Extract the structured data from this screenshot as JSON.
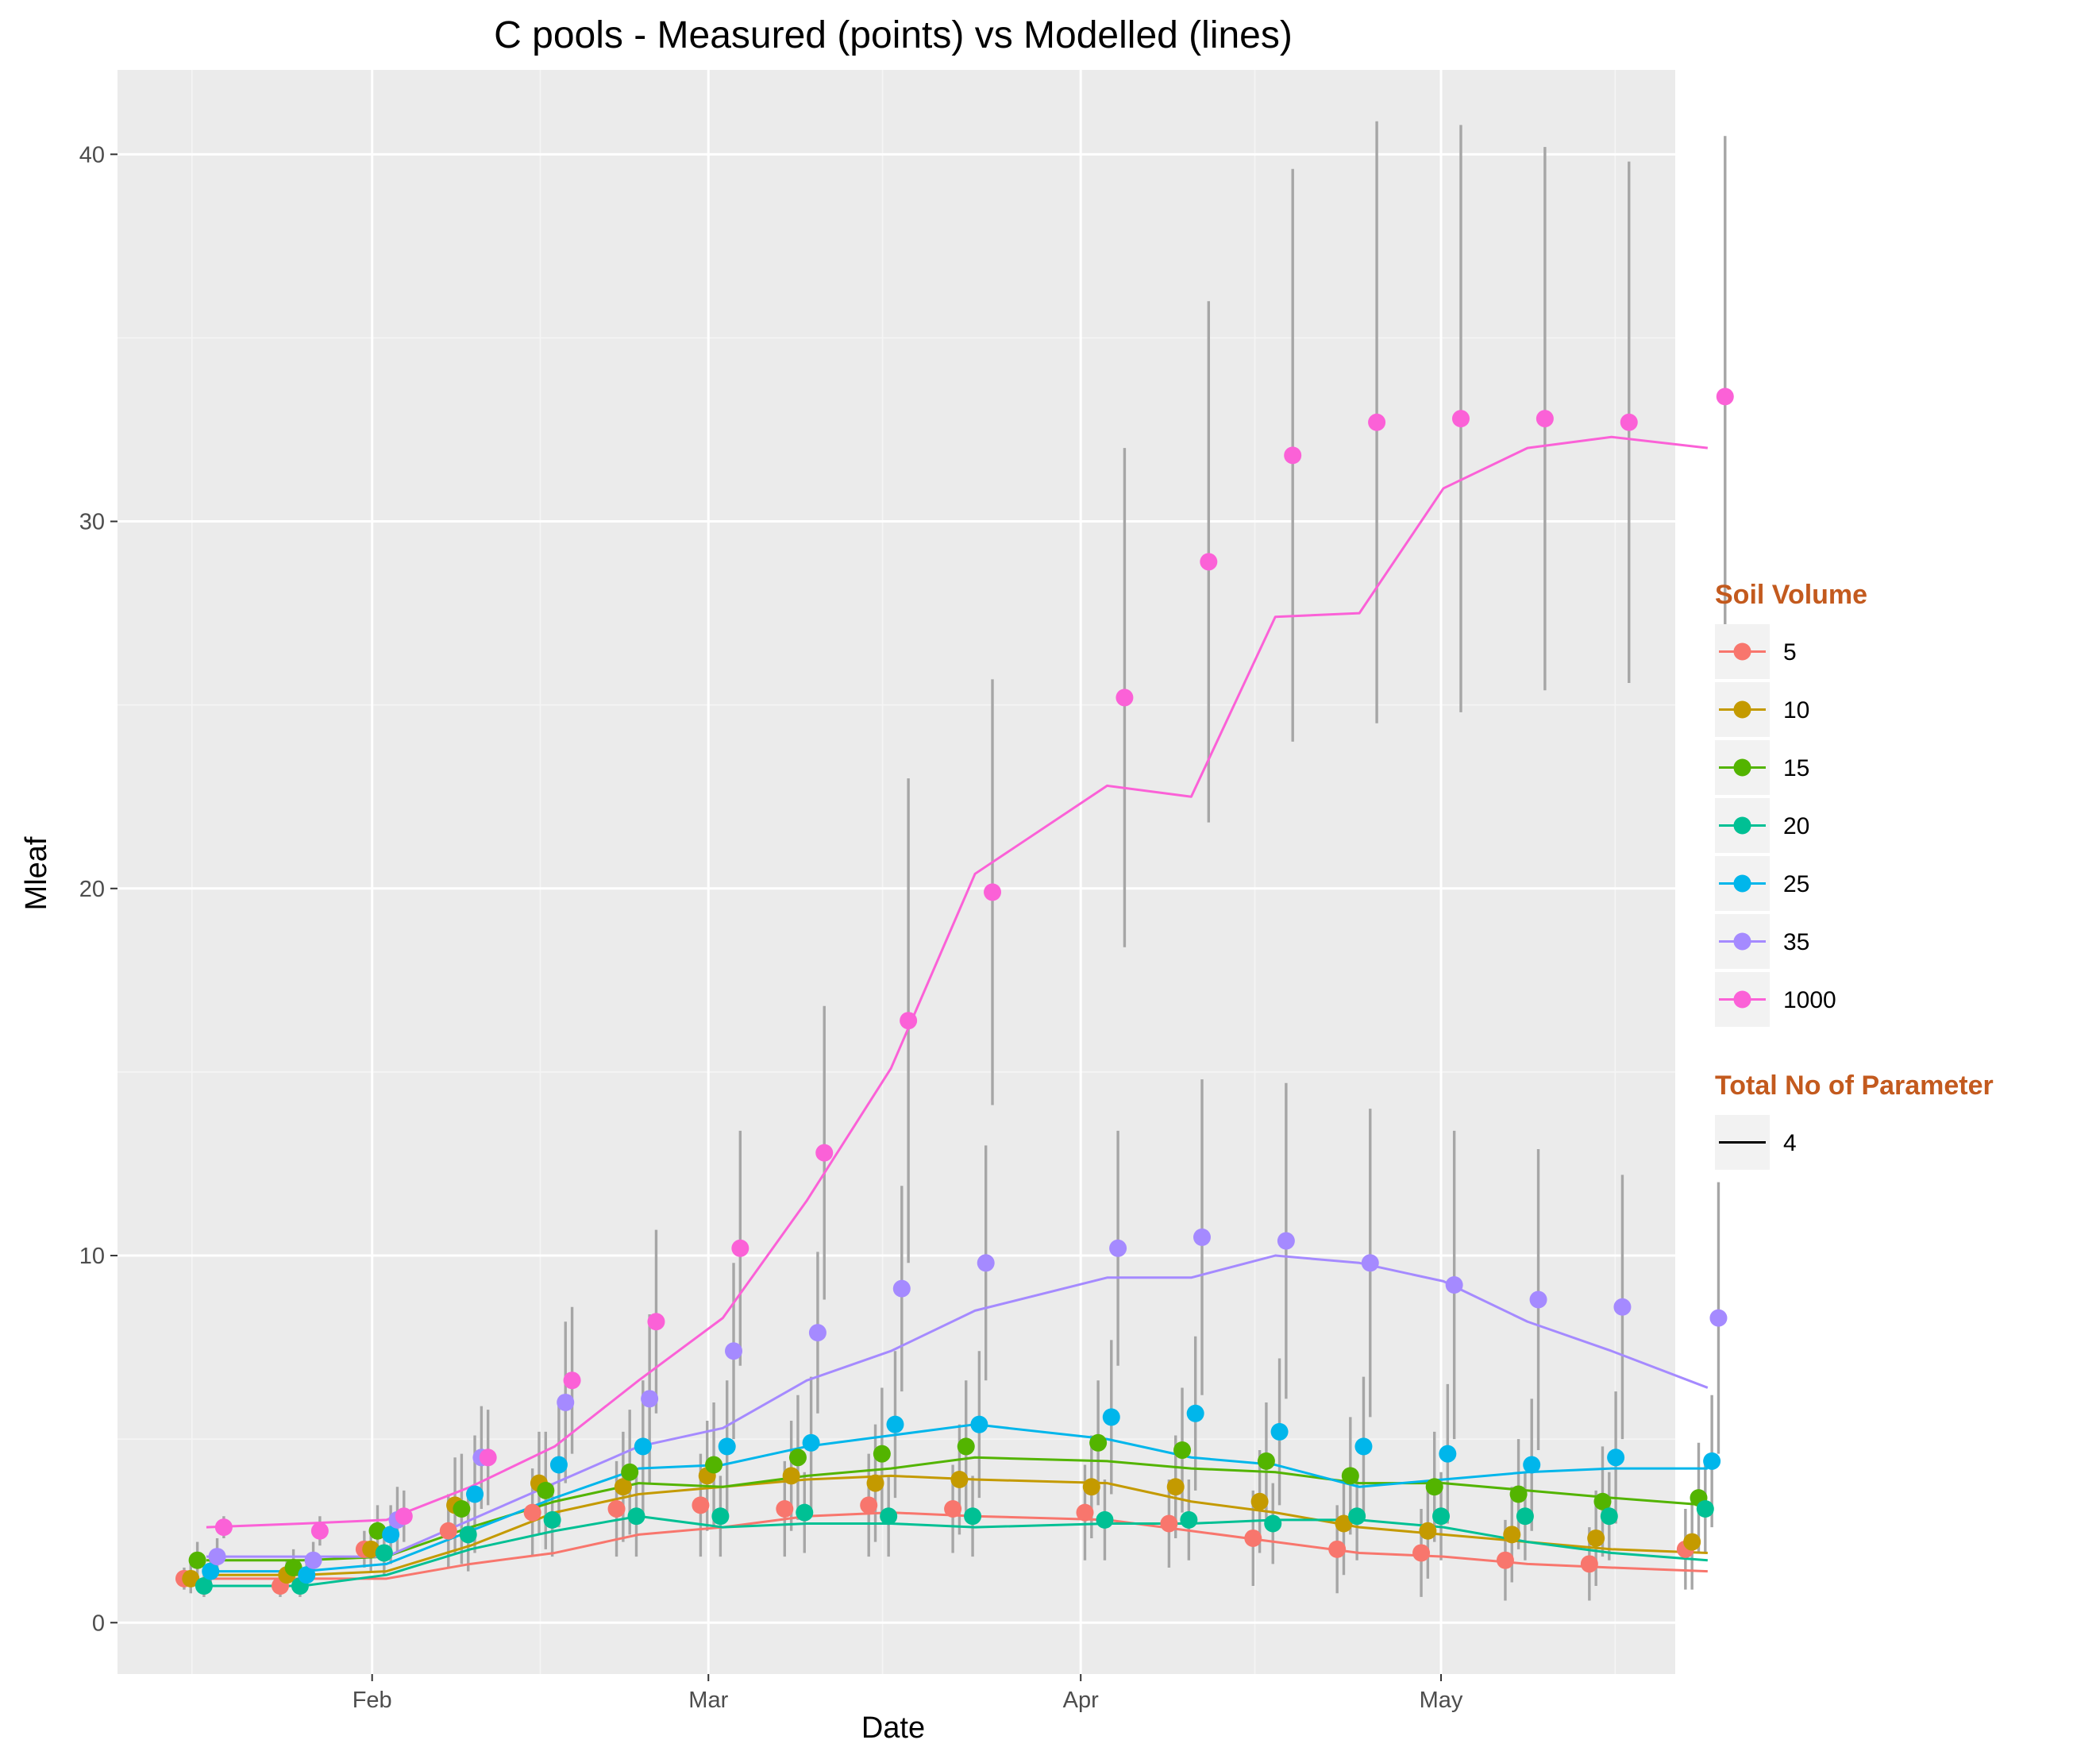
{
  "chart_data": {
    "type": "line",
    "title": "C pools - Measured (points) vs Modelled (lines)",
    "xlabel": "Date",
    "ylabel": "Mleaf",
    "x_ticks": [
      "Feb",
      "Mar",
      "Apr",
      "May"
    ],
    "y_ticks": [
      "0",
      "10",
      "20",
      "30",
      "40"
    ],
    "ylim": [
      -1.4,
      42.3
    ],
    "grid": "on",
    "legend_placement": "right",
    "legend_color_title": "Soil Volume",
    "legend_linetype_title": "Total No of Parameter",
    "legend_linetype_entries": [
      "4"
    ],
    "measure_dates": [
      "Jan 18",
      "Jan 26",
      "Feb 2",
      "Feb 9",
      "Feb 16",
      "Feb 23",
      "Mar 2",
      "Mar 9",
      "Mar 16",
      "Mar 23",
      "Apr 3",
      "Apr 10",
      "Apr 17",
      "Apr 24",
      "May 1",
      "May 8",
      "May 15",
      "May 23"
    ],
    "series": [
      {
        "name": "5",
        "color": "#F8766D",
        "measured": [
          1.2,
          1.0,
          2.0,
          2.5,
          3.0,
          3.1,
          3.2,
          3.1,
          3.2,
          3.1,
          3.0,
          2.7,
          2.3,
          2.0,
          1.9,
          1.7,
          1.6,
          2.0
        ],
        "error": [
          0.3,
          0.3,
          0.5,
          1.0,
          1.2,
          1.3,
          1.4,
          1.3,
          1.4,
          1.2,
          1.3,
          1.2,
          1.3,
          1.2,
          1.2,
          1.1,
          1.0,
          1.1
        ],
        "model": [
          1.2,
          1.2,
          1.2,
          1.6,
          1.9,
          2.4,
          2.6,
          2.9,
          3.0,
          2.9,
          2.8,
          2.5,
          2.2,
          1.9,
          1.8,
          1.6,
          1.5,
          1.4
        ]
      },
      {
        "name": "10",
        "color": "#C49A00",
        "measured": [
          1.2,
          1.3,
          2.0,
          3.2,
          3.8,
          3.7,
          4.0,
          4.0,
          3.8,
          3.9,
          3.7,
          3.7,
          3.3,
          2.7,
          2.5,
          2.4,
          2.3,
          2.2
        ],
        "error": [
          0.4,
          0.4,
          0.6,
          1.3,
          1.4,
          1.5,
          1.5,
          1.5,
          1.6,
          1.5,
          1.4,
          1.4,
          1.4,
          1.4,
          1.3,
          1.3,
          1.3,
          1.3
        ],
        "model": [
          1.3,
          1.3,
          1.4,
          2.1,
          3.0,
          3.5,
          3.7,
          3.9,
          4.0,
          3.9,
          3.8,
          3.3,
          3.0,
          2.6,
          2.4,
          2.2,
          2.0,
          1.9
        ]
      },
      {
        "name": "15",
        "color": "#53B400",
        "measured": [
          1.7,
          1.5,
          2.5,
          3.1,
          3.6,
          4.1,
          4.3,
          4.5,
          4.6,
          4.8,
          4.9,
          4.7,
          4.4,
          4.0,
          3.7,
          3.5,
          3.3,
          3.4
        ],
        "error": [
          0.5,
          0.5,
          0.7,
          1.5,
          1.6,
          1.7,
          1.7,
          1.7,
          1.8,
          1.8,
          1.7,
          1.7,
          1.6,
          1.6,
          1.5,
          1.5,
          1.5,
          1.5
        ],
        "model": [
          1.7,
          1.7,
          1.8,
          2.6,
          3.3,
          3.8,
          3.7,
          4.0,
          4.2,
          4.5,
          4.4,
          4.2,
          4.1,
          3.8,
          3.8,
          3.6,
          3.4,
          3.2
        ]
      },
      {
        "name": "20",
        "color": "#00C094",
        "measured": [
          1.0,
          1.0,
          1.9,
          2.4,
          2.8,
          2.9,
          2.9,
          3.0,
          2.9,
          2.9,
          2.8,
          2.8,
          2.7,
          2.9,
          2.9,
          2.9,
          2.9,
          3.1
        ],
        "error": [
          0.3,
          0.3,
          0.6,
          1.0,
          1.0,
          1.1,
          1.1,
          1.1,
          1.1,
          1.1,
          1.1,
          1.1,
          1.1,
          1.2,
          1.2,
          1.2,
          1.2,
          1.2
        ],
        "model": [
          1.0,
          1.0,
          1.3,
          2.0,
          2.5,
          2.9,
          2.6,
          2.7,
          2.7,
          2.6,
          2.7,
          2.7,
          2.8,
          2.8,
          2.6,
          2.2,
          1.9,
          1.7
        ]
      },
      {
        "name": "25",
        "color": "#00B6EB",
        "measured": [
          1.4,
          1.3,
          2.4,
          3.5,
          4.3,
          4.8,
          4.8,
          4.9,
          5.4,
          5.4,
          5.6,
          5.7,
          5.2,
          4.8,
          4.6,
          4.3,
          4.5,
          4.4
        ],
        "error": [
          0.4,
          0.4,
          0.8,
          1.6,
          1.7,
          1.8,
          1.8,
          1.8,
          2.0,
          2.0,
          2.1,
          2.1,
          2.0,
          1.9,
          1.9,
          1.8,
          1.8,
          1.8
        ],
        "model": [
          1.4,
          1.4,
          1.6,
          2.5,
          3.4,
          4.2,
          4.3,
          4.8,
          5.1,
          5.4,
          5.0,
          4.5,
          4.3,
          3.7,
          3.9,
          4.1,
          4.2,
          4.2
        ]
      },
      {
        "name": "35",
        "color": "#A58AFF",
        "measured": [
          1.8,
          1.7,
          2.8,
          4.5,
          6.0,
          6.1,
          7.4,
          7.9,
          9.1,
          9.8,
          10.2,
          10.5,
          10.4,
          9.8,
          9.2,
          8.8,
          8.6,
          8.3
        ],
        "error": [
          0.5,
          0.5,
          0.9,
          1.4,
          2.2,
          2.3,
          2.4,
          2.2,
          2.8,
          3.2,
          3.2,
          4.3,
          4.3,
          4.2,
          4.2,
          4.1,
          3.6,
          3.7
        ],
        "model": [
          1.8,
          1.8,
          1.8,
          2.8,
          3.8,
          4.8,
          5.3,
          6.6,
          7.4,
          8.5,
          9.4,
          9.4,
          10.0,
          9.8,
          9.3,
          8.2,
          7.4,
          6.4
        ]
      },
      {
        "name": "1000",
        "color": "#FB61D7",
        "measured": [
          2.6,
          2.5,
          2.9,
          4.5,
          6.6,
          8.2,
          10.2,
          12.8,
          16.4,
          19.9,
          25.2,
          28.9,
          31.8,
          32.7,
          32.8,
          32.8,
          32.7,
          33.4
        ],
        "error": [
          0.3,
          0.4,
          0.7,
          1.3,
          2.0,
          2.5,
          3.2,
          4.0,
          6.6,
          5.8,
          6.8,
          7.1,
          7.8,
          8.2,
          8.0,
          7.4,
          7.1,
          7.1
        ],
        "model": [
          2.6,
          2.7,
          2.8,
          3.7,
          4.8,
          6.6,
          8.3,
          11.5,
          15.1,
          20.4,
          22.8,
          22.5,
          27.4,
          27.5,
          30.9,
          32.0,
          32.3,
          32.0
        ]
      }
    ]
  }
}
